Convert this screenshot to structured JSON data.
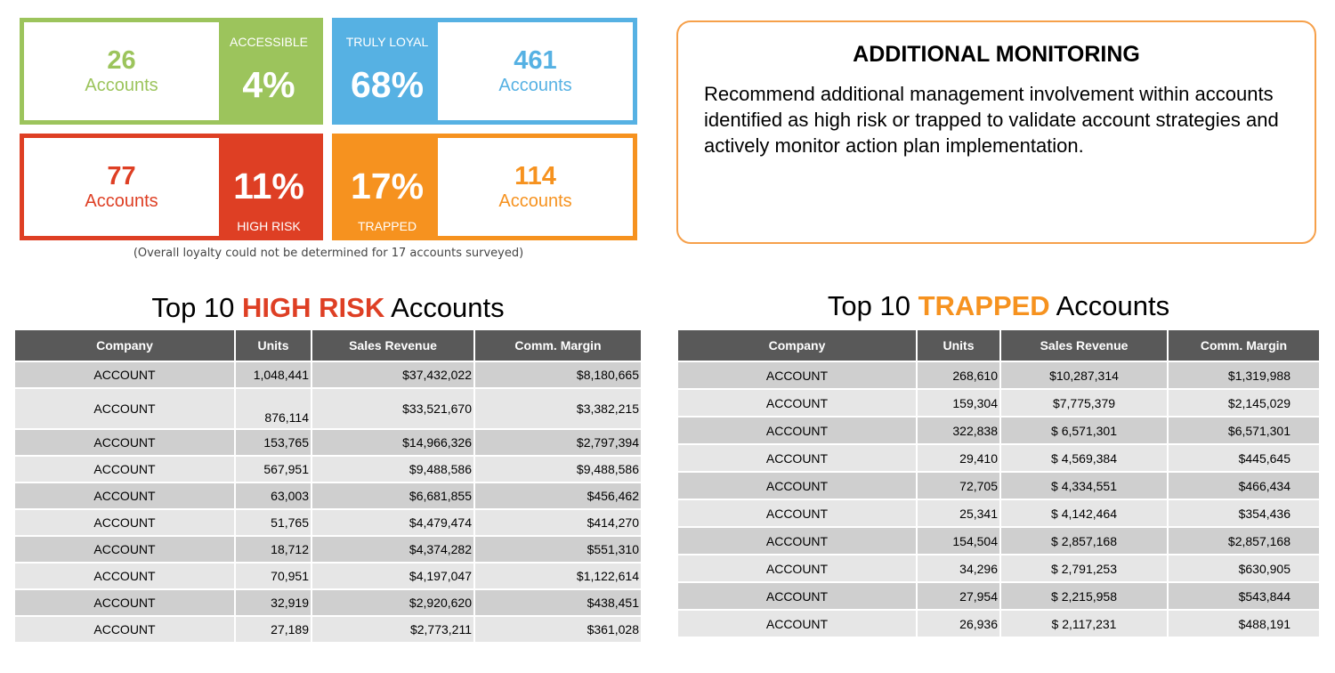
{
  "loyalty": {
    "accessible": {
      "count": "26",
      "accounts_label": "Accounts",
      "percent": "4%",
      "tag": "ACCESSIBLE",
      "color": "#9cc45c"
    },
    "truly_loyal": {
      "count": "461",
      "accounts_label": "Accounts",
      "percent": "68%",
      "tag": "TRULY LOYAL",
      "color": "#56b1e3"
    },
    "high_risk": {
      "count": "77",
      "accounts_label": "Accounts",
      "percent": "11%",
      "tag": "HIGH RISK",
      "color": "#de3f24"
    },
    "trapped": {
      "count": "114",
      "accounts_label": "Accounts",
      "percent": "17%",
      "tag": "TRAPPED",
      "color": "#f6921f"
    },
    "footnote": "(Overall loyalty could not be determined for 17 accounts surveyed)"
  },
  "monitoring": {
    "title": "ADDITIONAL MONITORING",
    "body": "Recommend additional management involvement within accounts identified as high risk or trapped to validate account strategies and actively monitor action plan implementation."
  },
  "high_risk_table": {
    "title_pre": "Top 10 ",
    "title_highlight": "HIGH RISK",
    "title_post": " Accounts",
    "headers": [
      "Company",
      "Units",
      "Sales Revenue",
      "Comm. Margin"
    ],
    "rows": [
      [
        "ACCOUNT",
        "1,048,441",
        "$37,432,022",
        "$8,180,665"
      ],
      [
        "ACCOUNT",
        "876,114",
        "$33,521,670",
        "$3,382,215"
      ],
      [
        "ACCOUNT",
        "153,765",
        "$14,966,326",
        "$2,797,394"
      ],
      [
        "ACCOUNT",
        "567,951",
        "$9,488,586",
        "$9,488,586"
      ],
      [
        "ACCOUNT",
        "63,003",
        "$6,681,855",
        "$456,462"
      ],
      [
        "ACCOUNT",
        "51,765",
        "$4,479,474",
        "$414,270"
      ],
      [
        "ACCOUNT",
        "18,712",
        "$4,374,282",
        "$551,310"
      ],
      [
        "ACCOUNT",
        "70,951",
        "$4,197,047",
        "$1,122,614"
      ],
      [
        "ACCOUNT",
        "32,919",
        "$2,920,620",
        "$438,451"
      ],
      [
        "ACCOUNT",
        "27,189",
        "$2,773,211",
        "$361,028"
      ]
    ]
  },
  "trapped_table": {
    "title_pre": "Top 10 ",
    "title_highlight": "TRAPPED",
    "title_post": " Accounts",
    "headers": [
      "Company",
      "Units",
      "Sales Revenue",
      "Comm. Margin"
    ],
    "rows": [
      [
        "ACCOUNT",
        "268,610",
        "$10,287,314",
        "$1,319,988"
      ],
      [
        "ACCOUNT",
        "159,304",
        "$7,775,379",
        "$2,145,029"
      ],
      [
        "ACCOUNT",
        "322,838",
        "$ 6,571,301",
        "$6,571,301"
      ],
      [
        "ACCOUNT",
        "29,410",
        "$ 4,569,384",
        "$445,645"
      ],
      [
        "ACCOUNT",
        "72,705",
        "$ 4,334,551",
        "$466,434"
      ],
      [
        "ACCOUNT",
        "25,341",
        "$ 4,142,464",
        "$354,436"
      ],
      [
        "ACCOUNT",
        "154,504",
        "$ 2,857,168",
        "$2,857,168"
      ],
      [
        "ACCOUNT",
        "34,296",
        "$ 2,791,253",
        "$630,905"
      ],
      [
        "ACCOUNT",
        "27,954",
        "$ 2,215,958",
        "$543,844"
      ],
      [
        "ACCOUNT",
        "26,936",
        "$ 2,117,231",
        "$488,191"
      ]
    ]
  }
}
